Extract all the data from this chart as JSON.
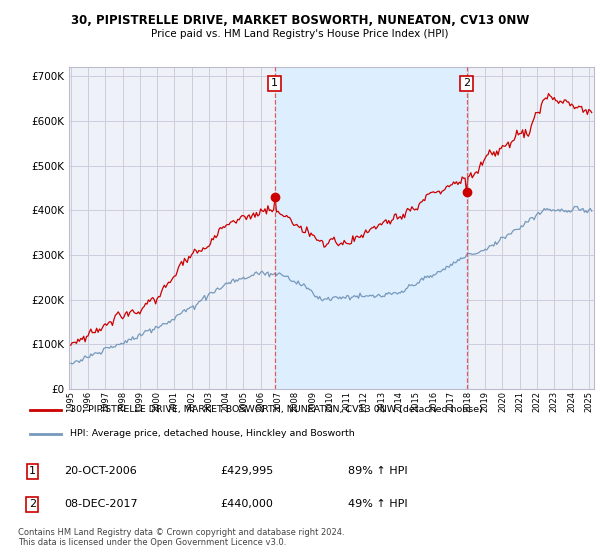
{
  "title": "30, PIPISTRELLE DRIVE, MARKET BOSWORTH, NUNEATON, CV13 0NW",
  "subtitle": "Price paid vs. HM Land Registry's House Price Index (HPI)",
  "legend_line1": "30, PIPISTRELLE DRIVE, MARKET BOSWORTH, NUNEATON, CV13 0NW (detached house)",
  "legend_line2": "HPI: Average price, detached house, Hinckley and Bosworth",
  "annotation1_label": "1",
  "annotation1_date": "20-OCT-2006",
  "annotation1_price": "£429,995",
  "annotation1_hpi": "89% ↑ HPI",
  "annotation2_label": "2",
  "annotation2_date": "08-DEC-2017",
  "annotation2_price": "£440,000",
  "annotation2_hpi": "49% ↑ HPI",
  "copyright": "Contains HM Land Registry data © Crown copyright and database right 2024.\nThis data is licensed under the Open Government Licence v3.0.",
  "red_color": "#cc0000",
  "blue_color": "#7799bb",
  "shade_color": "#ddeeff",
  "dashed_color": "#dd4444",
  "background_color": "#ffffff",
  "plot_bg_color": "#eef2f8",
  "grid_color": "#ccccdd",
  "ylim": [
    0,
    720000
  ],
  "yticks": [
    0,
    100000,
    200000,
    300000,
    400000,
    500000,
    600000,
    700000
  ],
  "xmin": 1995.0,
  "xmax": 2025.3,
  "sale1_x": 2006.8,
  "sale1_y": 429995,
  "sale2_x": 2017.92,
  "sale2_y": 440000
}
